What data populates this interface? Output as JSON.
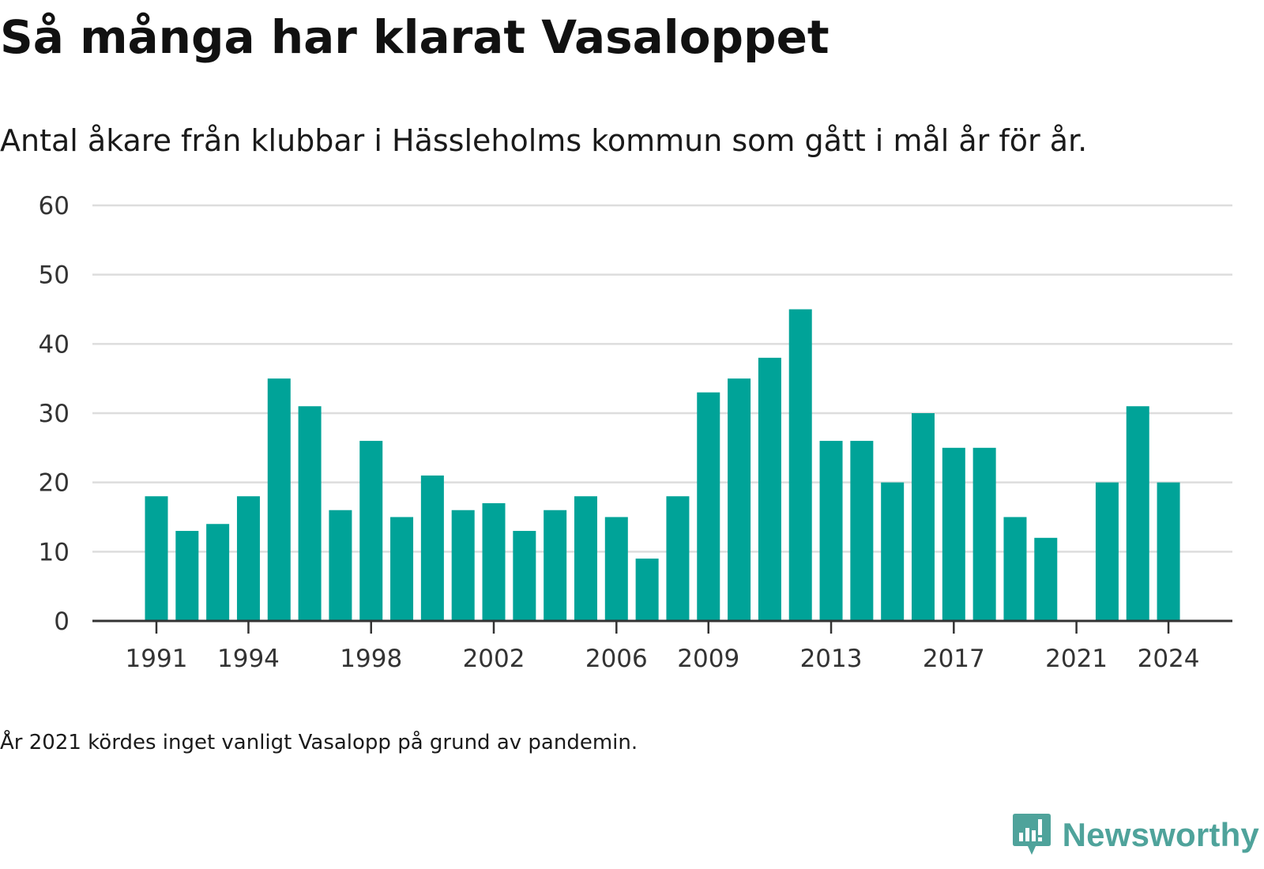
{
  "title": "Så många har klarat Vasaloppet",
  "subtitle": "Antal åkare från klubbar i Hässleholms kommun som gått i mål år för år.",
  "footnote": "År 2021 kördes inget vanligt Vasalopp på grund av pandemin.",
  "brand": {
    "name": "Newsworthy",
    "color": "#4fa39b",
    "icon": "bar-chart-speech-bubble-icon"
  },
  "colors": {
    "bar": "#00a398",
    "grid": "#dddddd",
    "axis": "#333333"
  },
  "chart_data": {
    "type": "bar",
    "x": [
      1991,
      1992,
      1993,
      1994,
      1995,
      1996,
      1997,
      1998,
      1999,
      2000,
      2001,
      2002,
      2003,
      2004,
      2005,
      2006,
      2007,
      2008,
      2009,
      2010,
      2011,
      2012,
      2013,
      2014,
      2015,
      2016,
      2017,
      2018,
      2019,
      2020,
      2021,
      2022,
      2023,
      2024
    ],
    "values": [
      18,
      13,
      14,
      18,
      35,
      31,
      16,
      26,
      15,
      21,
      16,
      17,
      13,
      16,
      18,
      15,
      9,
      18,
      33,
      35,
      38,
      45,
      26,
      26,
      20,
      30,
      25,
      25,
      15,
      12,
      null,
      20,
      31,
      20
    ],
    "x_tick_labels": [
      1991,
      1994,
      1998,
      2002,
      2006,
      2009,
      2013,
      2017,
      2021,
      2024
    ],
    "y_ticks": [
      0,
      10,
      20,
      30,
      40,
      50,
      60
    ],
    "ylim": [
      0,
      60
    ],
    "xlabel": "",
    "ylabel": "",
    "grid": true,
    "legend": "none"
  }
}
